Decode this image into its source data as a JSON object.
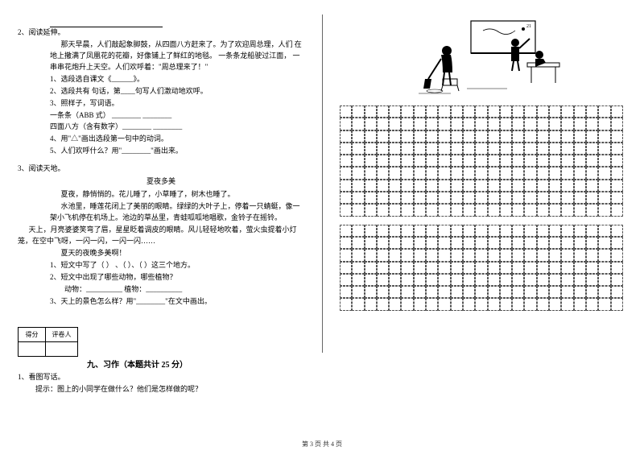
{
  "col1": {
    "blank_line_width": 140,
    "item2": {
      "num": "2、阅读延伸。",
      "p1": "那天早晨，人们敲起象脚鼓，从四面八方赶来了。为了欢迎周总理，人们 在地上撒满了凤凰花的花瓣，好像铺上了鲜红的地毯。 一条条龙船驶过江面，  一串串花炮升上天空。人们欢呼着：\"周总理来了！\"",
      "q1": "1、选段选自课文《______》。",
      "q2": "2、选段共有 句话，第____句写人们激动地欢呼。",
      "q3": "3、照样子，写词语。",
      "q3a": "一条条（ABB 式）    ________   ________",
      "q3b": "四面八方（含有数字）________   ________",
      "q4": "4、用\"△\"画出选段第一句中的动词。",
      "q5": "5、人们欢呼什么？用\"________\"画出来。"
    },
    "item3": {
      "num": "3、阅读天地。",
      "title": "夏夜多美",
      "p1": "夏夜，静悄悄的。花儿睡了，小草睡了，树木也睡了。",
      "p2": "水池里，睡莲花闭上了美丽的眼睛。绿绿的大叶子上，停着一只蜻蜓，像一架小飞机停在机场上。池边的草丛里，青蛙呱呱地唱歌，金铃子在摇铃。",
      "p3": "天上，月亮婆婆笑弯了眉，星星眨着调皮的眼睛。风儿轻轻地吹着，萤火虫提着小灯笼，在空中飞呀，一闪一闪，一闪一闪……",
      "p4": "夏天的夜晚多美啊！",
      "q1": "1、短文中写了（        ） 、（          ）、（         ）这三个地方。",
      "q2": "2、短文中出现了哪些动物，哪些植物？",
      "q2a": "动物：__________ 植物：__________",
      "q3": "3、天上的景色怎么样？用\"________\"在文中画出。"
    },
    "score": {
      "c1": "得分",
      "c2": "评卷人"
    },
    "section9": "九、习作（本题共计 25 分）",
    "item_xz": {
      "num": "1、看图写话。",
      "hint": "提示：图上的小同学在做什么？他们是怎样做的呢？"
    }
  },
  "footer": "第 3 页 共 4 页",
  "grid": {
    "cols": 23,
    "rows1": 9,
    "rows2": 7
  },
  "colors": {
    "text": "#000000",
    "bg": "#ffffff",
    "border": "#555555"
  }
}
